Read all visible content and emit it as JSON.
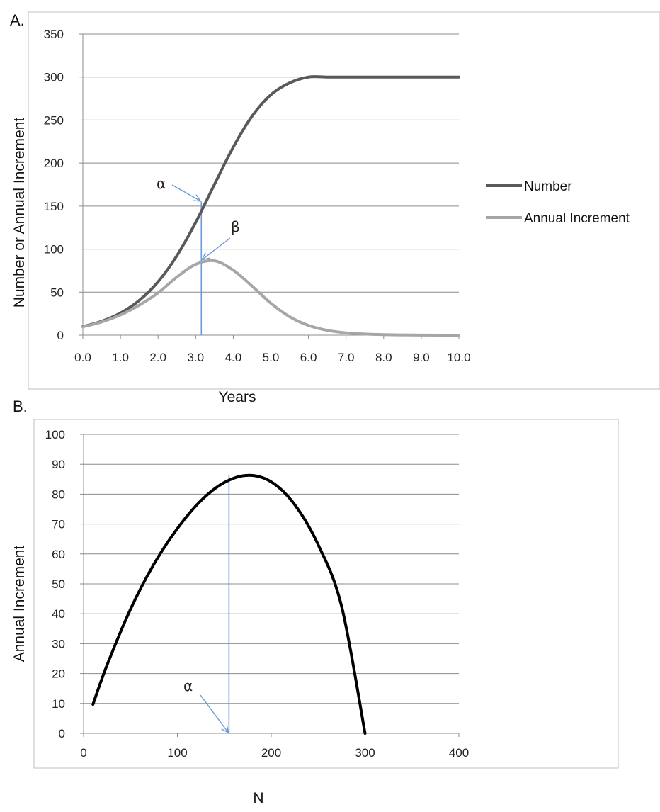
{
  "chart_data": [
    {
      "panel_label": "A.",
      "type": "line",
      "xlabel": "Years",
      "ylabel": "Number or Annual Increment",
      "xlim": [
        0,
        10
      ],
      "ylim": [
        0,
        350
      ],
      "x_ticks": [
        "0.0",
        "1.0",
        "2.0",
        "3.0",
        "4.0",
        "5.0",
        "6.0",
        "7.0",
        "8.0",
        "9.0",
        "10.0"
      ],
      "y_ticks": [
        "0",
        "50",
        "100",
        "150",
        "200",
        "250",
        "300",
        "350"
      ],
      "grid": true,
      "legend": "right",
      "x": [
        0,
        0.5,
        1,
        1.5,
        2,
        2.5,
        3,
        3.5,
        4,
        4.5,
        5,
        5.5,
        6,
        6.5,
        7,
        7.5,
        8,
        8.5,
        9,
        9.5,
        10
      ],
      "series": [
        {
          "name": "Number",
          "color": "#595959",
          "values": [
            10,
            16.2,
            25.7,
            40.4,
            62,
            92.3,
            131,
            175.2,
            218.5,
            254.5,
            279.4,
            293.2,
            300,
            300,
            300,
            300,
            300,
            300,
            300,
            300,
            300
          ]
        },
        {
          "name": "Annual Increment",
          "color": "#a6a6a6",
          "values": [
            9.7,
            15.4,
            23.5,
            34.9,
            49.2,
            67.5,
            82.3,
            86.4,
            75.5,
            57,
            37.1,
            21.4,
            11.3,
            5.6,
            2.7,
            1.3,
            0.6,
            0.3,
            0.1,
            0,
            0
          ]
        }
      ],
      "annotations": [
        {
          "label": "α",
          "x": 3.15,
          "y": 155
        },
        {
          "label": "β",
          "x": 3.15,
          "y": 86
        }
      ],
      "vline_x": 3.15,
      "vline_color": "#6a9bd8"
    },
    {
      "panel_label": "B.",
      "type": "line",
      "xlabel": "N",
      "ylabel": "Annual Increment",
      "xlim": [
        0,
        400
      ],
      "ylim": [
        0,
        100
      ],
      "x_ticks": [
        "0",
        "100",
        "200",
        "300",
        "400"
      ],
      "y_ticks": [
        "0",
        "10",
        "20",
        "30",
        "40",
        "50",
        "60",
        "70",
        "80",
        "90",
        "100"
      ],
      "grid": true,
      "series": [
        {
          "color": "#000000",
          "x": [
            10,
            25,
            50,
            75,
            100,
            125,
            150,
            175,
            200,
            225,
            250,
            275,
            300
          ],
          "values": [
            9.7,
            22.8,
            41.5,
            56.6,
            68.5,
            77.8,
            83.9,
            86.3,
            84.1,
            76.5,
            63.1,
            42.5,
            0
          ]
        }
      ],
      "annotations": [
        {
          "label": "α",
          "x": 155,
          "y": 0
        }
      ],
      "vline_x": 155,
      "vline_top": 86.4,
      "vline_color": "#6a9bd8"
    }
  ]
}
